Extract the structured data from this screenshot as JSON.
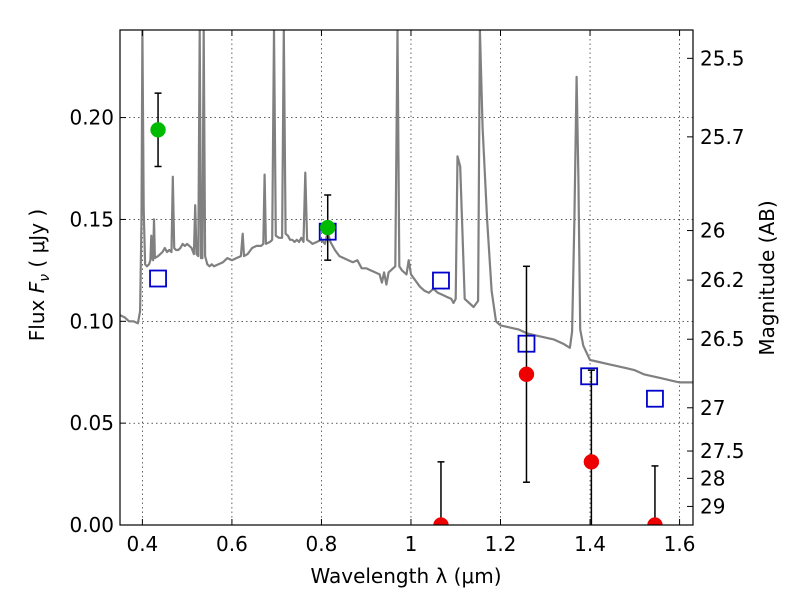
{
  "chart_data": {
    "type": "scatter",
    "xlabel": "Wavelength  λ (μm)",
    "ylabel": "Flux  F_ν  ( μJy )",
    "ylabel_parts": {
      "prefix": "Flux  ",
      "symbol": "F",
      "subscript": "ν",
      "suffix": "  ( μJy )"
    },
    "y2label": "Magnitude (AB)",
    "xlim": [
      0.35,
      1.63
    ],
    "ylim": [
      0.0,
      0.243
    ],
    "grid": true,
    "x_ticks": [
      {
        "value": 0.4,
        "label": "0.4"
      },
      {
        "value": 0.6,
        "label": "0.6"
      },
      {
        "value": 0.8,
        "label": "0.8"
      },
      {
        "value": 1.0,
        "label": "1"
      },
      {
        "value": 1.2,
        "label": "1.2"
      },
      {
        "value": 1.4,
        "label": "1.4"
      },
      {
        "value": 1.6,
        "label": "1.6"
      }
    ],
    "y_ticks": [
      {
        "value": 0.0,
        "label": "0.00"
      },
      {
        "value": 0.05,
        "label": "0.05"
      },
      {
        "value": 0.1,
        "label": "0.10"
      },
      {
        "value": 0.15,
        "label": "0.15"
      },
      {
        "value": 0.2,
        "label": "0.20"
      }
    ],
    "y2_ticks": [
      {
        "value": 25.5,
        "label": "25.5"
      },
      {
        "value": 25.7,
        "label": "25.7"
      },
      {
        "value": 26.0,
        "label": "26"
      },
      {
        "value": 26.2,
        "label": "26.2"
      },
      {
        "value": 26.5,
        "label": "26.5"
      },
      {
        "value": 27.0,
        "label": "27"
      },
      {
        "value": 27.5,
        "label": "27.5"
      },
      {
        "value": 28.0,
        "label": "28"
      },
      {
        "value": 29.0,
        "label": "29"
      }
    ],
    "colors": {
      "sed": "#808080",
      "model": "#0000cc",
      "detection": "#00bb00",
      "nondetection": "#ee0000",
      "errorbar": "#000000"
    },
    "sed_curve": [
      [
        0.35,
        0.103
      ],
      [
        0.36,
        0.102
      ],
      [
        0.37,
        0.1
      ],
      [
        0.38,
        0.1
      ],
      [
        0.39,
        0.099
      ],
      [
        0.395,
        0.105
      ],
      [
        0.398,
        0.15
      ],
      [
        0.4,
        0.243
      ],
      [
        0.403,
        0.155
      ],
      [
        0.406,
        0.128
      ],
      [
        0.41,
        0.127
      ],
      [
        0.415,
        0.128
      ],
      [
        0.418,
        0.13
      ],
      [
        0.42,
        0.142
      ],
      [
        0.422,
        0.131
      ],
      [
        0.424,
        0.13
      ],
      [
        0.426,
        0.15
      ],
      [
        0.428,
        0.131
      ],
      [
        0.435,
        0.132
      ],
      [
        0.44,
        0.133
      ],
      [
        0.445,
        0.134
      ],
      [
        0.45,
        0.136
      ],
      [
        0.455,
        0.134
      ],
      [
        0.46,
        0.135
      ],
      [
        0.465,
        0.134
      ],
      [
        0.468,
        0.171
      ],
      [
        0.471,
        0.136
      ],
      [
        0.475,
        0.135
      ],
      [
        0.48,
        0.135
      ],
      [
        0.485,
        0.136
      ],
      [
        0.49,
        0.138
      ],
      [
        0.495,
        0.137
      ],
      [
        0.5,
        0.138
      ],
      [
        0.505,
        0.137
      ],
      [
        0.51,
        0.136
      ],
      [
        0.515,
        0.133
      ],
      [
        0.518,
        0.157
      ],
      [
        0.521,
        0.133
      ],
      [
        0.525,
        0.132
      ],
      [
        0.528,
        0.243
      ],
      [
        0.531,
        0.131
      ],
      [
        0.534,
        0.131
      ],
      [
        0.537,
        0.243
      ],
      [
        0.54,
        0.132
      ],
      [
        0.545,
        0.128
      ],
      [
        0.55,
        0.127
      ],
      [
        0.555,
        0.128
      ],
      [
        0.56,
        0.127
      ],
      [
        0.57,
        0.128
      ],
      [
        0.58,
        0.129
      ],
      [
        0.59,
        0.131
      ],
      [
        0.6,
        0.13
      ],
      [
        0.61,
        0.131
      ],
      [
        0.62,
        0.132
      ],
      [
        0.624,
        0.143
      ],
      [
        0.627,
        0.132
      ],
      [
        0.635,
        0.133
      ],
      [
        0.645,
        0.136
      ],
      [
        0.655,
        0.137
      ],
      [
        0.665,
        0.137
      ],
      [
        0.67,
        0.138
      ],
      [
        0.673,
        0.172
      ],
      [
        0.676,
        0.138
      ],
      [
        0.685,
        0.139
      ],
      [
        0.69,
        0.14
      ],
      [
        0.694,
        0.243
      ],
      [
        0.698,
        0.142
      ],
      [
        0.705,
        0.141
      ],
      [
        0.712,
        0.141
      ],
      [
        0.716,
        0.243
      ],
      [
        0.72,
        0.143
      ],
      [
        0.725,
        0.142
      ],
      [
        0.73,
        0.14
      ],
      [
        0.735,
        0.14
      ],
      [
        0.74,
        0.139
      ],
      [
        0.745,
        0.14
      ],
      [
        0.75,
        0.139
      ],
      [
        0.755,
        0.141
      ],
      [
        0.76,
        0.139
      ],
      [
        0.764,
        0.173
      ],
      [
        0.768,
        0.14
      ],
      [
        0.775,
        0.139
      ],
      [
        0.78,
        0.138
      ],
      [
        0.79,
        0.139
      ],
      [
        0.8,
        0.14
      ],
      [
        0.808,
        0.138
      ],
      [
        0.812,
        0.142
      ],
      [
        0.815,
        0.143
      ],
      [
        0.82,
        0.139
      ],
      [
        0.83,
        0.135
      ],
      [
        0.84,
        0.132
      ],
      [
        0.85,
        0.131
      ],
      [
        0.86,
        0.13
      ],
      [
        0.87,
        0.129
      ],
      [
        0.88,
        0.13
      ],
      [
        0.89,
        0.126
      ],
      [
        0.9,
        0.126
      ],
      [
        0.91,
        0.125
      ],
      [
        0.92,
        0.124
      ],
      [
        0.93,
        0.123
      ],
      [
        0.935,
        0.119
      ],
      [
        0.94,
        0.124
      ],
      [
        0.945,
        0.118
      ],
      [
        0.95,
        0.124
      ],
      [
        0.955,
        0.125
      ],
      [
        0.96,
        0.126
      ],
      [
        0.965,
        0.127
      ],
      [
        0.97,
        0.243
      ],
      [
        0.974,
        0.127
      ],
      [
        0.98,
        0.125
      ],
      [
        0.99,
        0.123
      ],
      [
        0.995,
        0.13
      ],
      [
        1.0,
        0.123
      ],
      [
        1.01,
        0.12
      ],
      [
        1.02,
        0.117
      ],
      [
        1.03,
        0.115
      ],
      [
        1.04,
        0.114
      ],
      [
        1.05,
        0.116
      ],
      [
        1.06,
        0.114
      ],
      [
        1.07,
        0.113
      ],
      [
        1.08,
        0.112
      ],
      [
        1.09,
        0.111
      ],
      [
        1.095,
        0.109
      ],
      [
        1.1,
        0.111
      ],
      [
        1.104,
        0.181
      ],
      [
        1.11,
        0.176
      ],
      [
        1.115,
        0.143
      ],
      [
        1.12,
        0.111
      ],
      [
        1.13,
        0.109
      ],
      [
        1.14,
        0.107
      ],
      [
        1.15,
        0.11
      ],
      [
        1.154,
        0.243
      ],
      [
        1.16,
        0.195
      ],
      [
        1.17,
        0.15
      ],
      [
        1.18,
        0.115
      ],
      [
        1.19,
        0.1
      ],
      [
        1.2,
        0.098
      ],
      [
        1.22,
        0.097
      ],
      [
        1.24,
        0.096
      ],
      [
        1.26,
        0.094
      ],
      [
        1.28,
        0.093
      ],
      [
        1.3,
        0.092
      ],
      [
        1.32,
        0.091
      ],
      [
        1.34,
        0.089
      ],
      [
        1.355,
        0.087
      ],
      [
        1.36,
        0.095
      ],
      [
        1.365,
        0.15
      ],
      [
        1.37,
        0.22
      ],
      [
        1.374,
        0.17
      ],
      [
        1.378,
        0.096
      ],
      [
        1.385,
        0.088
      ],
      [
        1.4,
        0.081
      ],
      [
        1.42,
        0.08
      ],
      [
        1.44,
        0.079
      ],
      [
        1.46,
        0.078
      ],
      [
        1.48,
        0.077
      ],
      [
        1.5,
        0.076
      ],
      [
        1.52,
        0.074
      ],
      [
        1.54,
        0.073
      ],
      [
        1.56,
        0.072
      ],
      [
        1.58,
        0.071
      ],
      [
        1.6,
        0.07
      ],
      [
        1.63,
        0.07
      ]
    ],
    "model_points": [
      {
        "x": 0.435,
        "y": 0.121
      },
      {
        "x": 0.814,
        "y": 0.144
      },
      {
        "x": 1.067,
        "y": 0.12
      },
      {
        "x": 1.258,
        "y": 0.089
      },
      {
        "x": 1.398,
        "y": 0.073
      },
      {
        "x": 1.545,
        "y": 0.062
      }
    ],
    "detections": [
      {
        "x": 0.435,
        "y": 0.194,
        "yerr": 0.018
      },
      {
        "x": 0.814,
        "y": 0.146,
        "yerr": 0.016
      }
    ],
    "nondetections": [
      {
        "x": 1.067,
        "y": 0.0,
        "ylow": 0.0,
        "yhigh": 0.031
      },
      {
        "x": 1.258,
        "y": 0.074,
        "ylow": 0.021,
        "yhigh": 0.127
      },
      {
        "x": 1.403,
        "y": 0.031,
        "ylow": 0.0,
        "yhigh": 0.076
      },
      {
        "x": 1.545,
        "y": 0.0,
        "ylow": 0.0,
        "yhigh": 0.029
      }
    ]
  }
}
